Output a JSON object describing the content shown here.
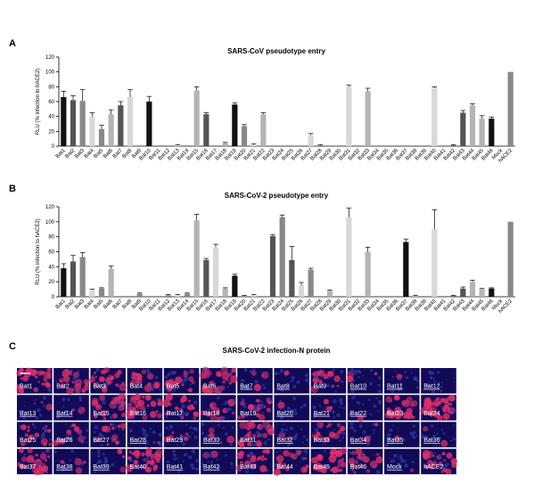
{
  "panels": [
    {
      "letter": "A",
      "title": "SARS-CoV pseudotype entry"
    },
    {
      "letter": "B",
      "title": "SARS-CoV-2 pseudotype entry"
    },
    {
      "letter": "C",
      "title": "SARS-CoV-2 infection-N protein"
    }
  ],
  "palette": {
    "black": "#111111",
    "dark": "#555555",
    "mid": "#888888",
    "light": "#b4b4b4",
    "xlight": "#d8d8d8",
    "tile_base": "#120a56",
    "tile_red": "#e0306a",
    "tile_blue": "#2a3aa8"
  },
  "chart_data": [
    {
      "type": "bar",
      "title": "SARS-CoV pseudotype entry",
      "ylabel": "RLU (% infection to hACE2)",
      "xlabel": "",
      "ylim": [
        0,
        120
      ],
      "yticks": [
        0,
        20,
        40,
        60,
        80,
        100,
        120
      ],
      "grid": false,
      "categories": [
        "Bat1",
        "Bat2",
        "Bat3",
        "Bat4",
        "Bat5",
        "Bat6",
        "Bat7",
        "Bat8",
        "Bat9",
        "Bat10",
        "Bat11",
        "Bat12",
        "Bat13",
        "Bat14",
        "Bat15",
        "Bat16",
        "Bat17",
        "Bat18",
        "Bat19",
        "Bat20",
        "Bat21",
        "Bat22",
        "Bat23",
        "Bat24",
        "Bat25",
        "Bat26",
        "Bat27",
        "Bat28",
        "Bat29",
        "Bat30",
        "Bat31",
        "Bat32",
        "Bat33",
        "Bat34",
        "Bat35",
        "Bat36",
        "Bat37",
        "Bat38",
        "Bat39",
        "Bat40",
        "Bat41",
        "Bat42",
        "Bat43",
        "Bat44",
        "Bat45",
        "Bat46",
        "Mock",
        "hACE2"
      ],
      "values": [
        66,
        62,
        61,
        40,
        23,
        43,
        55,
        66,
        0,
        60,
        0,
        0,
        1,
        0,
        75,
        43,
        0,
        4,
        56,
        27,
        2,
        43,
        0,
        0,
        0,
        0,
        15,
        1,
        0,
        0,
        80,
        0,
        74,
        0,
        0,
        0,
        0,
        0,
        0,
        79,
        0,
        1,
        45,
        55,
        37,
        37,
        0,
        100
      ],
      "errors": [
        8,
        6,
        15,
        5,
        5,
        6,
        5,
        10,
        0,
        7,
        0,
        0,
        1,
        0,
        5,
        2,
        0,
        1,
        2,
        2,
        1,
        2,
        0,
        0,
        0,
        0,
        2,
        1,
        0,
        0,
        2,
        0,
        4,
        0,
        0,
        0,
        0,
        0,
        0,
        1,
        0,
        1,
        3,
        2,
        4,
        2,
        0,
        0
      ],
      "colors": [
        "black",
        "dark",
        "mid",
        "xlight",
        "mid",
        "light",
        "dark",
        "xlight",
        "mid",
        "black",
        "black",
        "mid",
        "xlight",
        "mid",
        "light",
        "dark",
        "xlight",
        "light",
        "black",
        "mid",
        "xlight",
        "light",
        "mid",
        "dark",
        "light",
        "light",
        "xlight",
        "mid",
        "mid",
        "light",
        "xlight",
        "mid",
        "light",
        "dark",
        "light",
        "mid",
        "black",
        "light",
        "xlight",
        "xlight",
        "xlight",
        "dark",
        "dark",
        "light",
        "light",
        "black",
        "mid",
        "mid"
      ]
    },
    {
      "type": "bar",
      "title": "SARS-CoV-2 pseudotype entry",
      "ylabel": "RLU (% infection to hACE2)",
      "xlabel": "",
      "ylim": [
        0,
        120
      ],
      "yticks": [
        0,
        20,
        40,
        60,
        80,
        100,
        120
      ],
      "grid": false,
      "categories": [
        "Bat1",
        "Bat2",
        "Bat3",
        "Bat4",
        "Bat5",
        "Bat6",
        "Bat7",
        "Bat8",
        "Bat9",
        "Bat10",
        "Bat11",
        "Bat12",
        "Bat13",
        "Bat14",
        "Bat15",
        "Bat16",
        "Bat17",
        "Bat18",
        "Bat19",
        "Bat20",
        "Bat21",
        "Bat22",
        "Bat23",
        "Bat24",
        "Bat25",
        "Bat26",
        "Bat27",
        "Bat28",
        "Bat29",
        "Bat30",
        "Bat31",
        "Bat32",
        "Bat33",
        "Bat34",
        "Bat35",
        "Bat36",
        "Bat37",
        "Bat38",
        "Bat39",
        "Bat40",
        "Bat41",
        "Bat42",
        "Bat43",
        "Bat44",
        "Bat45",
        "Bat46",
        "Mock",
        "hACE2"
      ],
      "values": [
        38,
        47,
        53,
        9,
        11,
        37,
        0,
        0,
        4,
        0,
        0,
        2,
        2,
        4,
        102,
        49,
        66,
        11,
        28,
        1,
        2,
        0,
        81,
        106,
        49,
        15,
        36,
        0,
        8,
        0,
        106,
        0,
        60,
        0,
        0,
        0,
        73,
        1,
        0,
        90,
        0,
        1,
        11,
        20,
        10,
        11,
        0,
        100
      ],
      "errors": [
        6,
        8,
        6,
        1,
        1,
        4,
        0,
        0,
        1,
        0,
        0,
        1,
        1,
        1,
        8,
        2,
        4,
        1,
        2,
        1,
        1,
        0,
        2,
        3,
        18,
        4,
        2,
        0,
        1,
        0,
        12,
        0,
        6,
        0,
        0,
        0,
        4,
        1,
        0,
        26,
        0,
        1,
        2,
        2,
        1,
        1,
        0,
        0
      ],
      "colors": [
        "black",
        "dark",
        "mid",
        "xlight",
        "mid",
        "light",
        "dark",
        "xlight",
        "mid",
        "black",
        "black",
        "mid",
        "xlight",
        "mid",
        "light",
        "dark",
        "xlight",
        "light",
        "black",
        "mid",
        "xlight",
        "light",
        "dark",
        "mid",
        "dark",
        "xlight",
        "mid",
        "dark",
        "light",
        "light",
        "xlight",
        "mid",
        "light",
        "dark",
        "light",
        "mid",
        "black",
        "light",
        "xlight",
        "xlight",
        "xlight",
        "dark",
        "dark",
        "light",
        "light",
        "black",
        "mid",
        "mid"
      ]
    }
  ],
  "tiles": [
    {
      "label": "Bat1",
      "underline": false,
      "red": 0.75
    },
    {
      "label": "Bat2",
      "underline": false,
      "red": 0.7
    },
    {
      "label": "Bat3",
      "underline": false,
      "red": 0.65
    },
    {
      "label": "Bat4",
      "underline": false,
      "red": 0.45
    },
    {
      "label": "Bat5",
      "underline": false,
      "red": 0.55
    },
    {
      "label": "Bat6",
      "underline": false,
      "red": 0.75
    },
    {
      "label": "Bat7",
      "underline": true,
      "red": 0.1
    },
    {
      "label": "Bat8",
      "underline": true,
      "red": 0.1
    },
    {
      "label": "Bat9",
      "underline": false,
      "red": 0.5
    },
    {
      "label": "Bat10",
      "underline": true,
      "red": 0.1
    },
    {
      "label": "Bat11",
      "underline": true,
      "red": 0.08
    },
    {
      "label": "Bat12",
      "underline": true,
      "red": 0.08
    },
    {
      "label": "Bat13",
      "underline": true,
      "red": 0.1
    },
    {
      "label": "Bat14",
      "underline": true,
      "red": 0.1
    },
    {
      "label": "Bat15",
      "underline": false,
      "red": 0.7
    },
    {
      "label": "Bat16",
      "underline": false,
      "red": 0.8
    },
    {
      "label": "Bat17",
      "underline": false,
      "red": 0.7
    },
    {
      "label": "Bat18",
      "underline": false,
      "red": 0.45
    },
    {
      "label": "Bat19",
      "underline": false,
      "red": 0.7
    },
    {
      "label": "Bat20",
      "underline": true,
      "red": 0.08
    },
    {
      "label": "Bat21",
      "underline": true,
      "red": 0.12
    },
    {
      "label": "Bat22",
      "underline": true,
      "red": 0.1
    },
    {
      "label": "Bat23",
      "underline": false,
      "red": 0.75
    },
    {
      "label": "Bat24",
      "underline": false,
      "red": 0.85
    },
    {
      "label": "Bat25",
      "underline": false,
      "red": 0.6
    },
    {
      "label": "Bat26",
      "underline": false,
      "red": 0.45
    },
    {
      "label": "Bat27",
      "underline": false,
      "red": 0.55
    },
    {
      "label": "Bat28",
      "underline": true,
      "red": 0.08
    },
    {
      "label": "Bat29",
      "underline": false,
      "red": 0.3
    },
    {
      "label": "Bat30",
      "underline": true,
      "red": 0.1
    },
    {
      "label": "Bat31",
      "underline": false,
      "red": 0.75
    },
    {
      "label": "Bat32",
      "underline": true,
      "red": 0.1
    },
    {
      "label": "Bat33",
      "underline": false,
      "red": 0.7
    },
    {
      "label": "Bat34",
      "underline": true,
      "red": 0.08
    },
    {
      "label": "Bat35",
      "underline": true,
      "red": 0.08
    },
    {
      "label": "Bat36",
      "underline": true,
      "red": 0.08
    },
    {
      "label": "Bat37",
      "underline": false,
      "red": 0.75
    },
    {
      "label": "Bat38",
      "underline": true,
      "red": 0.1
    },
    {
      "label": "Bat39",
      "underline": true,
      "red": 0.12
    },
    {
      "label": "Bat40",
      "underline": false,
      "red": 0.75
    },
    {
      "label": "Bat41",
      "underline": true,
      "red": 0.1
    },
    {
      "label": "Bat42",
      "underline": true,
      "red": 0.12
    },
    {
      "label": "Bat43",
      "underline": false,
      "red": 0.55
    },
    {
      "label": "Bat44",
      "underline": false,
      "red": 0.65
    },
    {
      "label": "Bat45",
      "underline": false,
      "red": 0.8
    },
    {
      "label": "Bat46",
      "underline": false,
      "red": 0.5
    },
    {
      "label": "Mock",
      "underline": true,
      "red": 0.08
    },
    {
      "label": "hACE2",
      "underline": false,
      "red": 0.7
    }
  ]
}
